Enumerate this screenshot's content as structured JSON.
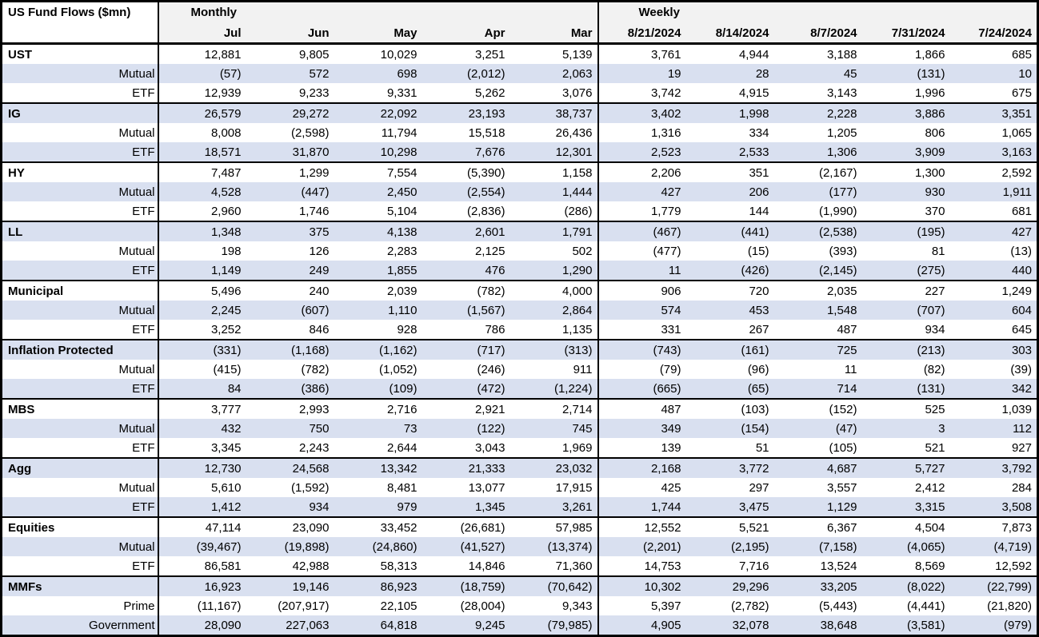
{
  "colors": {
    "row_band": "#d9e0f0",
    "header_bg": "#f2f2f2",
    "border": "#000000",
    "text": "#000000"
  },
  "chart_data": {
    "type": "table",
    "title": "US Fund Flows ($mn)",
    "monthly_label": "Monthly",
    "weekly_label": "Weekly",
    "monthly_columns": [
      "Jul",
      "Jun",
      "May",
      "Apr",
      "Mar"
    ],
    "weekly_columns": [
      "8/21/2024",
      "8/14/2024",
      "8/7/2024",
      "7/31/2024",
      "7/24/2024"
    ],
    "sections": [
      {
        "name": "UST",
        "rows": [
          {
            "label": "UST",
            "is_category": true,
            "monthly": [
              12881,
              9805,
              10029,
              3251,
              5139
            ],
            "weekly": [
              3761,
              4944,
              3188,
              1866,
              685
            ]
          },
          {
            "label": "Mutual",
            "is_category": false,
            "monthly": [
              -57,
              572,
              698,
              -2012,
              2063
            ],
            "weekly": [
              19,
              28,
              45,
              -131,
              10
            ]
          },
          {
            "label": "ETF",
            "is_category": false,
            "monthly": [
              12939,
              9233,
              9331,
              5262,
              3076
            ],
            "weekly": [
              3742,
              4915,
              3143,
              1996,
              675
            ]
          }
        ]
      },
      {
        "name": "IG",
        "rows": [
          {
            "label": "IG",
            "is_category": true,
            "monthly": [
              26579,
              29272,
              22092,
              23193,
              38737
            ],
            "weekly": [
              3402,
              1998,
              2228,
              3886,
              3351
            ]
          },
          {
            "label": "Mutual",
            "is_category": false,
            "monthly": [
              8008,
              -2598,
              11794,
              15518,
              26436
            ],
            "weekly": [
              1316,
              334,
              1205,
              806,
              1065
            ]
          },
          {
            "label": "ETF",
            "is_category": false,
            "monthly": [
              18571,
              31870,
              10298,
              7676,
              12301
            ],
            "weekly": [
              2523,
              2533,
              1306,
              3909,
              3163
            ]
          }
        ]
      },
      {
        "name": "HY",
        "rows": [
          {
            "label": "HY",
            "is_category": true,
            "monthly": [
              7487,
              1299,
              7554,
              -5390,
              1158
            ],
            "weekly": [
              2206,
              351,
              -2167,
              1300,
              2592
            ]
          },
          {
            "label": "Mutual",
            "is_category": false,
            "monthly": [
              4528,
              -447,
              2450,
              -2554,
              1444
            ],
            "weekly": [
              427,
              206,
              -177,
              930,
              1911
            ]
          },
          {
            "label": "ETF",
            "is_category": false,
            "monthly": [
              2960,
              1746,
              5104,
              -2836,
              -286
            ],
            "weekly": [
              1779,
              144,
              -1990,
              370,
              681
            ]
          }
        ]
      },
      {
        "name": "LL",
        "rows": [
          {
            "label": "LL",
            "is_category": true,
            "monthly": [
              1348,
              375,
              4138,
              2601,
              1791
            ],
            "weekly": [
              -467,
              -441,
              -2538,
              -195,
              427
            ]
          },
          {
            "label": "Mutual",
            "is_category": false,
            "monthly": [
              198,
              126,
              2283,
              2125,
              502
            ],
            "weekly": [
              -477,
              -15,
              -393,
              81,
              -13
            ]
          },
          {
            "label": "ETF",
            "is_category": false,
            "monthly": [
              1149,
              249,
              1855,
              476,
              1290
            ],
            "weekly": [
              11,
              -426,
              -2145,
              -275,
              440
            ]
          }
        ]
      },
      {
        "name": "Municipal",
        "rows": [
          {
            "label": "Municipal",
            "is_category": true,
            "monthly": [
              5496,
              240,
              2039,
              -782,
              4000
            ],
            "weekly": [
              906,
              720,
              2035,
              227,
              1249
            ]
          },
          {
            "label": "Mutual",
            "is_category": false,
            "monthly": [
              2245,
              -607,
              1110,
              -1567,
              2864
            ],
            "weekly": [
              574,
              453,
              1548,
              -707,
              604
            ]
          },
          {
            "label": "ETF",
            "is_category": false,
            "monthly": [
              3252,
              846,
              928,
              786,
              1135
            ],
            "weekly": [
              331,
              267,
              487,
              934,
              645
            ]
          }
        ]
      },
      {
        "name": "Inflation Protected",
        "rows": [
          {
            "label": "Inflation Protected",
            "is_category": true,
            "monthly": [
              -331,
              -1168,
              -1162,
              -717,
              -313
            ],
            "weekly": [
              -743,
              -161,
              725,
              -213,
              303
            ]
          },
          {
            "label": "Mutual",
            "is_category": false,
            "monthly": [
              -415,
              -782,
              -1052,
              -246,
              911
            ],
            "weekly": [
              -79,
              -96,
              11,
              -82,
              -39
            ]
          },
          {
            "label": "ETF",
            "is_category": false,
            "monthly": [
              84,
              -386,
              -109,
              -472,
              -1224
            ],
            "weekly": [
              -665,
              -65,
              714,
              -131,
              342
            ]
          }
        ]
      },
      {
        "name": "MBS",
        "rows": [
          {
            "label": "MBS",
            "is_category": true,
            "monthly": [
              3777,
              2993,
              2716,
              2921,
              2714
            ],
            "weekly": [
              487,
              -103,
              -152,
              525,
              1039
            ]
          },
          {
            "label": "Mutual",
            "is_category": false,
            "monthly": [
              432,
              750,
              73,
              -122,
              745
            ],
            "weekly": [
              349,
              -154,
              -47,
              3,
              112
            ]
          },
          {
            "label": "ETF",
            "is_category": false,
            "monthly": [
              3345,
              2243,
              2644,
              3043,
              1969
            ],
            "weekly": [
              139,
              51,
              -105,
              521,
              927
            ]
          }
        ]
      },
      {
        "name": "Agg",
        "rows": [
          {
            "label": "Agg",
            "is_category": true,
            "monthly": [
              12730,
              24568,
              13342,
              21333,
              23032
            ],
            "weekly": [
              2168,
              3772,
              4687,
              5727,
              3792
            ]
          },
          {
            "label": "Mutual",
            "is_category": false,
            "monthly": [
              5610,
              -1592,
              8481,
              13077,
              17915
            ],
            "weekly": [
              425,
              297,
              3557,
              2412,
              284
            ]
          },
          {
            "label": "ETF",
            "is_category": false,
            "monthly": [
              1412,
              934,
              979,
              1345,
              3261
            ],
            "weekly": [
              1744,
              3475,
              1129,
              3315,
              3508
            ]
          }
        ]
      },
      {
        "name": "Equities",
        "rows": [
          {
            "label": "Equities",
            "is_category": true,
            "monthly": [
              47114,
              23090,
              33452,
              -26681,
              57985
            ],
            "weekly": [
              12552,
              5521,
              6367,
              4504,
              7873
            ]
          },
          {
            "label": "Mutual",
            "is_category": false,
            "monthly": [
              -39467,
              -19898,
              -24860,
              -41527,
              -13374
            ],
            "weekly": [
              -2201,
              -2195,
              -7158,
              -4065,
              -4719
            ]
          },
          {
            "label": "ETF",
            "is_category": false,
            "monthly": [
              86581,
              42988,
              58313,
              14846,
              71360
            ],
            "weekly": [
              14753,
              7716,
              13524,
              8569,
              12592
            ]
          }
        ]
      },
      {
        "name": "MMFs",
        "rows": [
          {
            "label": "MMFs",
            "is_category": true,
            "monthly": [
              16923,
              19146,
              86923,
              -18759,
              -70642
            ],
            "weekly": [
              10302,
              29296,
              33205,
              -8022,
              -22799
            ]
          },
          {
            "label": "Prime",
            "is_category": false,
            "monthly": [
              -11167,
              -207917,
              22105,
              -28004,
              9343
            ],
            "weekly": [
              5397,
              -2782,
              -5443,
              -4441,
              -21820
            ]
          },
          {
            "label": "Government",
            "is_category": false,
            "monthly": [
              28090,
              227063,
              64818,
              9245,
              -79985
            ],
            "weekly": [
              4905,
              32078,
              38648,
              -3581,
              -979
            ]
          }
        ]
      }
    ]
  }
}
